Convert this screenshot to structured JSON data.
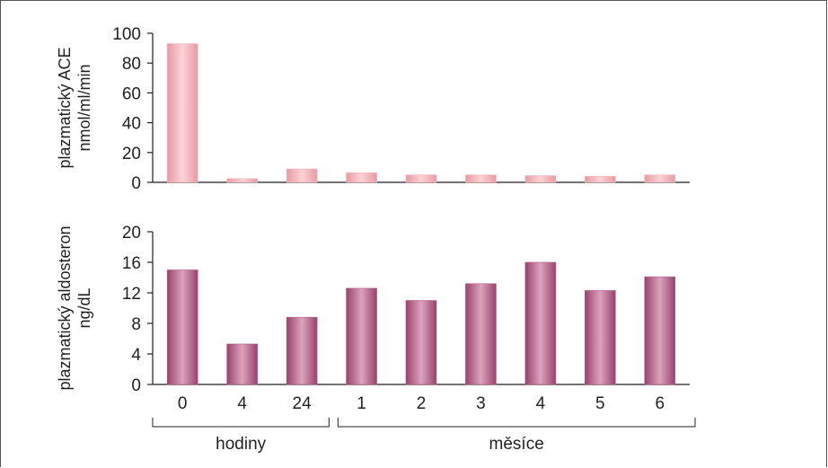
{
  "chart_data": [
    {
      "type": "bar",
      "ylabel": [
        "plazmatický ACE",
        "nmol/ml/min"
      ],
      "ylim": [
        0,
        100
      ],
      "yticks": [
        "0",
        "20",
        "40",
        "60",
        "80",
        "100"
      ],
      "categories": [
        "0",
        "4",
        "24",
        "1",
        "2",
        "3",
        "4",
        "5",
        "6"
      ],
      "values": [
        93,
        2.5,
        9,
        6.5,
        5,
        5,
        4.5,
        4,
        5
      ],
      "bar_color": "#f2b3b8",
      "grid": false
    },
    {
      "type": "bar",
      "ylabel": [
        "plazmatický aldosteron",
        "ng/dL"
      ],
      "ylim": [
        0,
        20
      ],
      "yticks": [
        "0",
        "4",
        "8",
        "12",
        "16",
        "20"
      ],
      "categories": [
        "0",
        "4",
        "24",
        "1",
        "2",
        "3",
        "4",
        "5",
        "6"
      ],
      "values": [
        15,
        5.3,
        8.8,
        12.6,
        11,
        13.2,
        16,
        12.3,
        14.1
      ],
      "bar_color": "#b45a84",
      "grid": false
    }
  ],
  "x_groups": [
    {
      "label": "hodiny",
      "count": 3
    },
    {
      "label": "měsíce",
      "count": 6
    }
  ]
}
